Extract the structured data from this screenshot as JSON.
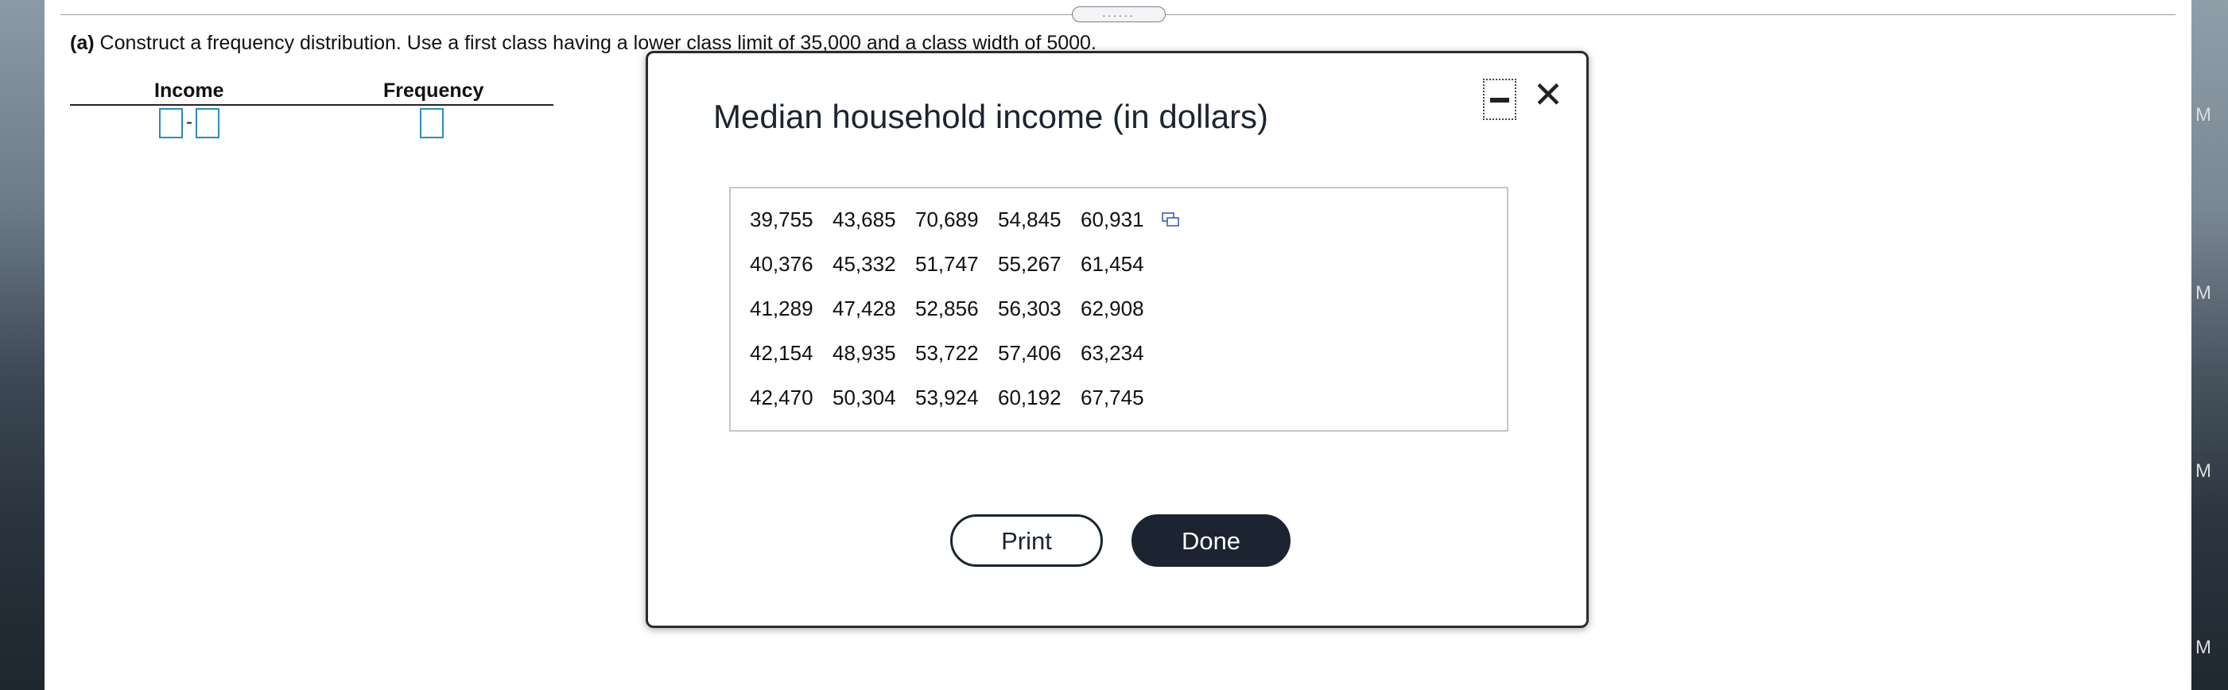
{
  "grip": {
    "label": "......"
  },
  "question": {
    "part": "(a)",
    "text": " Construct a frequency distribution. Use a first class having a lower class limit of 35,000 and a class width of 5000."
  },
  "table": {
    "col_income": "Income",
    "col_frequency": "Frequency",
    "dash": "-"
  },
  "side_badges": [
    "M",
    "M",
    "M",
    "M"
  ],
  "modal": {
    "title": "Median household income (in dollars)",
    "rows": [
      [
        "39,755",
        "43,685",
        "70,689",
        "54,845",
        "60,931"
      ],
      [
        "40,376",
        "45,332",
        "51,747",
        "55,267",
        "61,454"
      ],
      [
        "41,289",
        "47,428",
        "52,856",
        "56,303",
        "62,908"
      ],
      [
        "42,154",
        "48,935",
        "53,722",
        "57,406",
        "63,234"
      ],
      [
        "42,470",
        "50,304",
        "53,924",
        "60,192",
        "67,745"
      ]
    ],
    "print_label": "Print",
    "done_label": "Done",
    "close_glyph": "✕"
  },
  "icons": {
    "minimize": "minimize-icon",
    "close": "close-icon",
    "copy": "copy-icon"
  },
  "colors": {
    "accent": "#2a8fb8",
    "dark_button": "#1b2430"
  }
}
